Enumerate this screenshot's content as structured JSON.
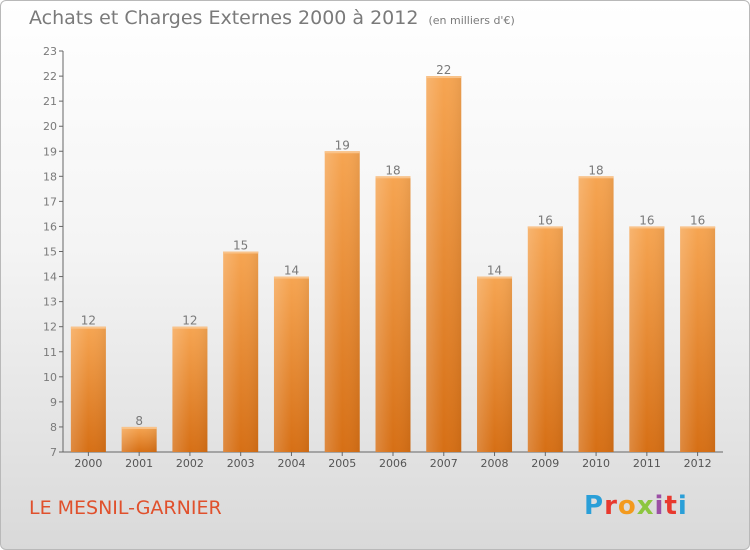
{
  "header": {
    "title": "Achats et Charges Externes 2000 à 2012",
    "unit": "(en milliers d'€)"
  },
  "footer": {
    "location": "LE MESNIL-GARNIER",
    "brand": "Proxiti"
  },
  "colors": {
    "bar_top": "#f6a552",
    "bar_bottom": "#d66f15",
    "label": "#7a7a7a",
    "location": "#e0502c"
  },
  "chart_data": {
    "type": "bar",
    "title": "Achats et Charges Externes 2000 à 2012",
    "subtitle": "(en milliers d'€)",
    "categories": [
      "2000",
      "2001",
      "2002",
      "2003",
      "2004",
      "2005",
      "2006",
      "2007",
      "2008",
      "2009",
      "2010",
      "2011",
      "2012"
    ],
    "values": [
      12,
      8,
      12,
      15,
      14,
      19,
      18,
      22,
      14,
      16,
      18,
      16,
      16
    ],
    "ylim": [
      7,
      23
    ],
    "yticks": [
      7,
      8,
      9,
      10,
      11,
      12,
      13,
      14,
      15,
      16,
      17,
      18,
      19,
      20,
      21,
      22,
      23
    ],
    "grid": false,
    "xlabel": "",
    "ylabel": ""
  }
}
